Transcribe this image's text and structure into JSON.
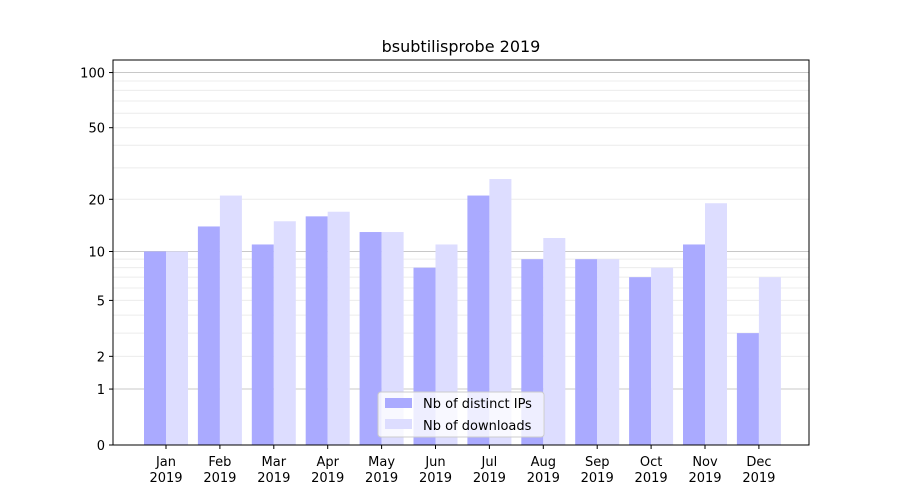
{
  "chart_data": {
    "type": "bar",
    "title": "bsubtilisprobe 2019",
    "xlabel": "",
    "ylabel": "",
    "yscale": "log(1+y)",
    "ylim": [
      0,
      117
    ],
    "yticks": [
      0,
      1,
      2,
      5,
      10,
      20,
      50,
      100
    ],
    "grid": true,
    "legend_position": "bottom-center",
    "categories": [
      "Jan\n2019",
      "Feb\n2019",
      "Mar\n2019",
      "Apr\n2019",
      "May\n2019",
      "Jun\n2019",
      "Jul\n2019",
      "Aug\n2019",
      "Sep\n2019",
      "Oct\n2019",
      "Nov\n2019",
      "Dec\n2019"
    ],
    "series": [
      {
        "name": "Nb of distinct IPs",
        "color": "#aaaaff",
        "values": [
          10,
          14,
          11,
          16,
          13,
          8,
          21,
          9,
          9,
          7,
          11,
          3
        ]
      },
      {
        "name": "Nb of downloads",
        "color": "#ddddff",
        "values": [
          10,
          21,
          15,
          17,
          13,
          11,
          26,
          12,
          9,
          8,
          19,
          7
        ]
      }
    ]
  }
}
